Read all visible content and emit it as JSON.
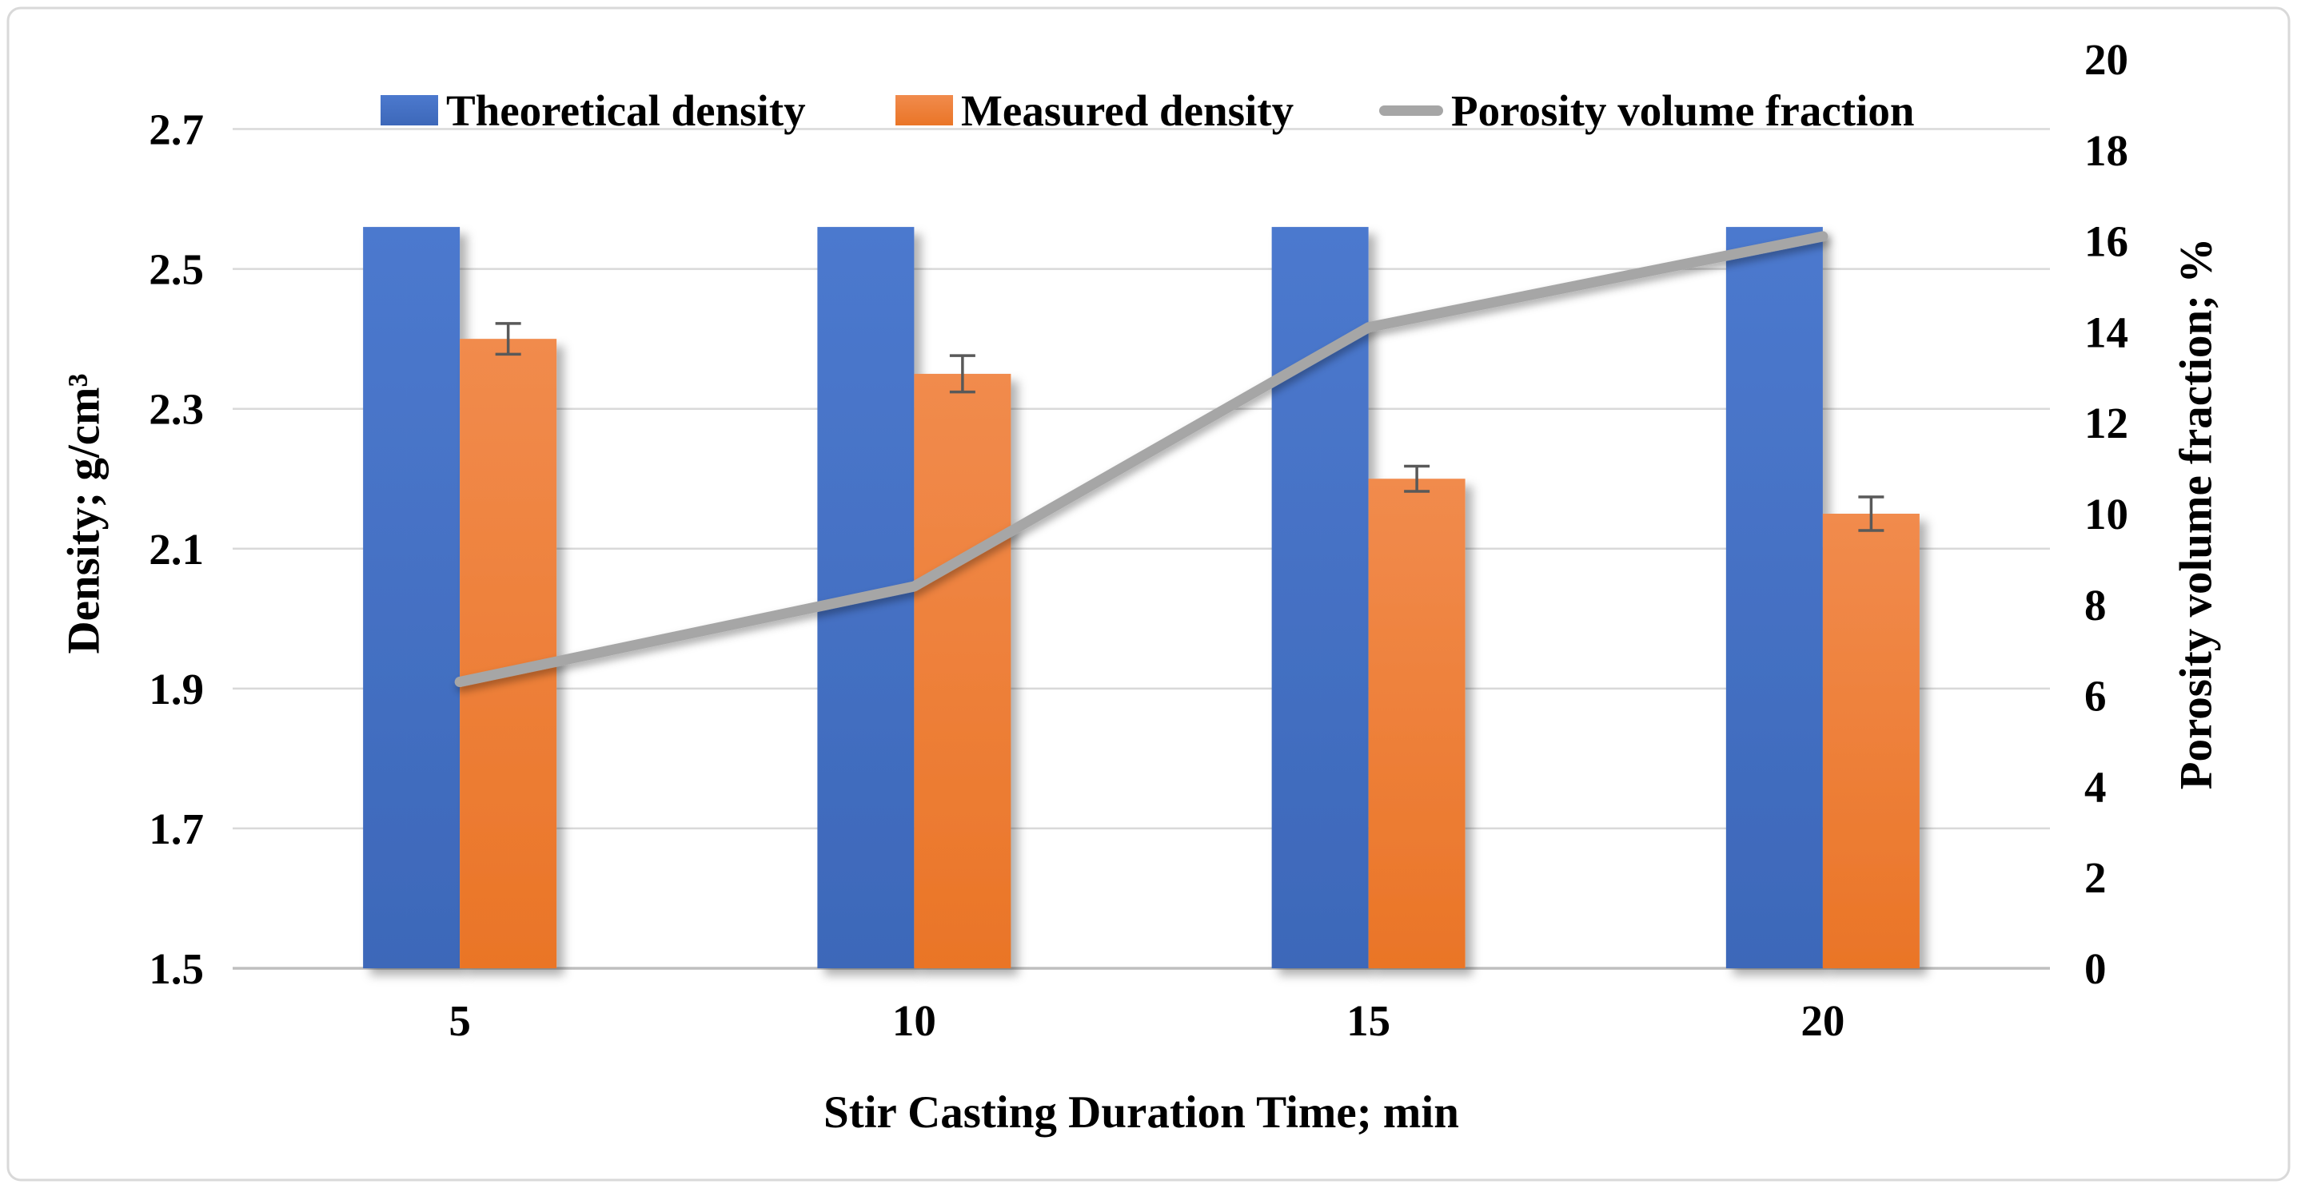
{
  "figure": {
    "legend": [
      {
        "label": "Theoretical density",
        "swatch": "square"
      },
      {
        "label": "Measured density",
        "swatch": "square"
      },
      {
        "label": "Porosity volume fraction",
        "swatch": "line"
      }
    ],
    "axes": {
      "left": {
        "title": "Density; g/cm³",
        "tick_labels": [
          "2.7",
          "2.5",
          "2.3",
          "2.1",
          "1.9",
          "1.7",
          "1.5"
        ]
      },
      "right": {
        "title": "Porosity volume fraction; %",
        "tick_labels": [
          "20",
          "18",
          "16",
          "14",
          "12",
          "10",
          "8",
          "6",
          "4",
          "2",
          "0"
        ]
      },
      "x": {
        "title": "Stir Casting Duration Time; min",
        "categories": [
          "5",
          "10",
          "15",
          "20"
        ]
      }
    }
  },
  "chart_data": {
    "type": "bar",
    "subtype": "dual-axis clustered bars with overlaid line",
    "categories": [
      5,
      10,
      15,
      20
    ],
    "series": [
      {
        "name": "Theoretical density",
        "type": "bar",
        "axis": "left",
        "color": "#4472C4",
        "values": [
          2.56,
          2.56,
          2.56,
          2.56
        ]
      },
      {
        "name": "Measured density",
        "type": "bar",
        "axis": "left",
        "color": "#ED7D31",
        "values": [
          2.4,
          2.35,
          2.2,
          2.15
        ],
        "error_bars": [
          0.022,
          0.026,
          0.018,
          0.024
        ]
      },
      {
        "name": "Porosity volume fraction",
        "type": "line",
        "axis": "right",
        "color": "#A6A6A6",
        "values": [
          6.3,
          8.4,
          14.1,
          16.1
        ]
      }
    ],
    "xlabel": "Stir Casting Duration Time; min",
    "ylabel_left": "Density; g/cm³",
    "ylabel_right": "Porosity volume fraction; %",
    "ylim_left": [
      1.5,
      2.8
    ],
    "ytick_step_left": 0.2,
    "ylim_right": [
      0,
      20
    ],
    "ytick_step_right": 2,
    "grid": "horizontal",
    "legend_position": "top-center"
  },
  "style": {
    "background": "#FFFFFF",
    "border_color": "#D9D9D9",
    "gridline_color": "#D9D9D9",
    "baseline_color": "#BFBFBF",
    "error_bar_color": "#595959",
    "text_color": "#000000",
    "bar_gradient_theoretical": [
      "#4C79CE",
      "#3D68B9"
    ],
    "bar_gradient_measured": [
      "#F18B4D",
      "#EA7527"
    ],
    "line_color": "#A6A6A6"
  }
}
